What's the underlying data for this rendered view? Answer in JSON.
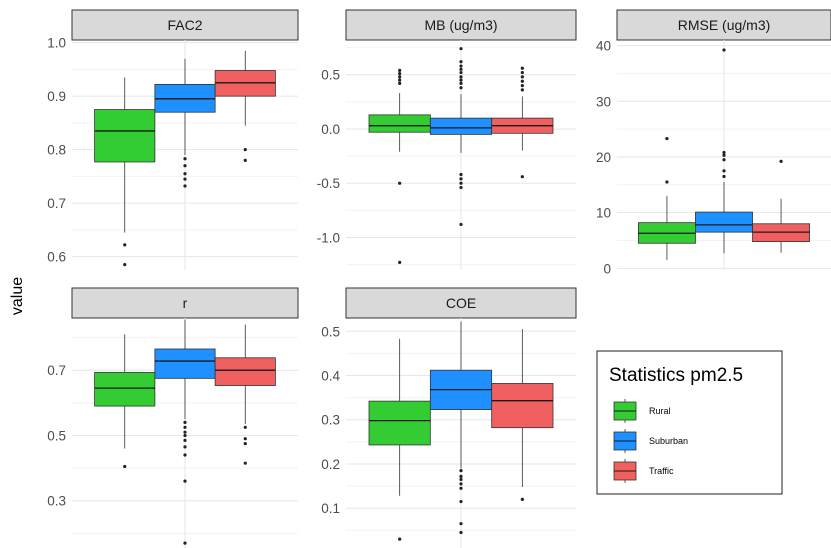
{
  "chart_data": {
    "type": "boxplot",
    "ylabel": "value",
    "legend": {
      "title": "Statistics pm2.5",
      "position": "right",
      "entries": [
        {
          "label": "Rural",
          "color": "#33cc33"
        },
        {
          "label": "Suburban",
          "color": "#1e90ff"
        },
        {
          "label": "Traffic",
          "color": "#f06060"
        }
      ]
    },
    "grid": true,
    "panels": [
      {
        "title": "FAC2",
        "ylim": [
          0.575,
          1.005
        ],
        "ticks": [
          0.6,
          0.7,
          0.8,
          0.9,
          1.0
        ],
        "tick_labels": [
          "0.6",
          "0.7",
          "0.8",
          "0.9",
          "1.0"
        ],
        "boxes": [
          {
            "group": "Rural",
            "whisker_low": 0.645,
            "q1": 0.777,
            "median": 0.835,
            "q3": 0.875,
            "whisker_high": 0.935,
            "outliers": [
              0.622,
              0.585
            ]
          },
          {
            "group": "Suburban",
            "whisker_low": 0.79,
            "q1": 0.87,
            "median": 0.895,
            "q3": 0.922,
            "whisker_high": 0.97,
            "outliers": [
              0.783,
              0.77,
              0.755,
              0.745,
              0.732
            ]
          },
          {
            "group": "Traffic",
            "whisker_low": 0.845,
            "q1": 0.9,
            "median": 0.925,
            "q3": 0.948,
            "whisker_high": 0.985,
            "outliers": [
              0.8,
              0.78
            ]
          }
        ]
      },
      {
        "title": "MB (ug/m3)",
        "ylim": [
          -1.3,
          0.82
        ],
        "ticks": [
          -1.0,
          -0.5,
          0.0,
          0.5
        ],
        "tick_labels": [
          "-1.0",
          "-0.5",
          "0.0",
          "0.5"
        ],
        "boxes": [
          {
            "group": "Rural",
            "whisker_low": -0.21,
            "q1": -0.03,
            "median": 0.03,
            "q3": 0.13,
            "whisker_high": 0.33,
            "outliers": [
              0.42,
              0.45,
              0.48,
              0.51,
              0.54,
              -0.5,
              -1.23
            ]
          },
          {
            "group": "Suburban",
            "whisker_low": -0.22,
            "q1": -0.05,
            "median": 0.01,
            "q3": 0.1,
            "whisker_high": 0.32,
            "outliers": [
              0.38,
              0.42,
              0.45,
              0.48,
              0.52,
              0.55,
              0.58,
              0.62,
              0.74,
              -0.42,
              -0.46,
              -0.5,
              -0.54,
              -0.88
            ]
          },
          {
            "group": "Traffic",
            "whisker_low": -0.2,
            "q1": -0.04,
            "median": 0.03,
            "q3": 0.1,
            "whisker_high": 0.3,
            "outliers": [
              0.36,
              0.4,
              0.44,
              0.48,
              0.52,
              0.56,
              -0.44
            ]
          }
        ]
      },
      {
        "title": "RMSE (ug/m3)",
        "ylim": [
          -0.3,
          41
        ],
        "ticks": [
          0,
          10,
          20,
          30,
          40
        ],
        "tick_labels": [
          "0",
          "10",
          "20",
          "30",
          "40"
        ],
        "boxes": [
          {
            "group": "Rural",
            "whisker_low": 1.5,
            "q1": 4.5,
            "median": 6.3,
            "q3": 8.2,
            "whisker_high": 13,
            "outliers": [
              15.5,
              23.3
            ]
          },
          {
            "group": "Suburban",
            "whisker_low": 2.7,
            "q1": 6.5,
            "median": 7.8,
            "q3": 10.1,
            "whisker_high": 15.5,
            "outliers": [
              16.5,
              17.5,
              19.5,
              20.3,
              20.8,
              39.2
            ]
          },
          {
            "group": "Traffic",
            "whisker_low": 2.8,
            "q1": 4.8,
            "median": 6.5,
            "q3": 8.0,
            "whisker_high": 12.5,
            "outliers": [
              19.2
            ]
          }
        ]
      },
      {
        "title": "r",
        "ylim": [
          0.155,
          0.86
        ],
        "ticks": [
          0.3,
          0.5,
          0.7
        ],
        "tick_labels": [
          "0.3",
          "0.5",
          "0.7"
        ],
        "boxes": [
          {
            "group": "Rural",
            "whisker_low": 0.46,
            "q1": 0.59,
            "median": 0.645,
            "q3": 0.693,
            "whisker_high": 0.81,
            "outliers": [
              0.405
            ]
          },
          {
            "group": "Suburban",
            "whisker_low": 0.55,
            "q1": 0.675,
            "median": 0.728,
            "q3": 0.765,
            "whisker_high": 0.855,
            "outliers": [
              0.54,
              0.525,
              0.51,
              0.5,
              0.485,
              0.465,
              0.44,
              0.36,
              0.17
            ]
          },
          {
            "group": "Traffic",
            "whisker_low": 0.535,
            "q1": 0.653,
            "median": 0.7,
            "q3": 0.738,
            "whisker_high": 0.84,
            "outliers": [
              0.525,
              0.49,
              0.475,
              0.415
            ]
          }
        ]
      },
      {
        "title": "COE",
        "ylim": [
          0.01,
          0.53
        ],
        "ticks": [
          0.1,
          0.2,
          0.3,
          0.4,
          0.5
        ],
        "tick_labels": [
          "0.1",
          "0.2",
          "0.3",
          "0.4",
          "0.5"
        ],
        "boxes": [
          {
            "group": "Rural",
            "whisker_low": 0.128,
            "q1": 0.243,
            "median": 0.298,
            "q3": 0.342,
            "whisker_high": 0.483,
            "outliers": [
              0.03
            ]
          },
          {
            "group": "Suburban",
            "whisker_low": 0.19,
            "q1": 0.323,
            "median": 0.368,
            "q3": 0.412,
            "whisker_high": 0.522,
            "outliers": [
              0.185,
              0.172,
              0.165,
              0.155,
              0.145,
              0.115,
              0.065,
              0.045
            ]
          },
          {
            "group": "Traffic",
            "whisker_low": 0.148,
            "q1": 0.282,
            "median": 0.343,
            "q3": 0.382,
            "whisker_high": 0.505,
            "outliers": [
              0.12
            ]
          }
        ]
      }
    ]
  }
}
